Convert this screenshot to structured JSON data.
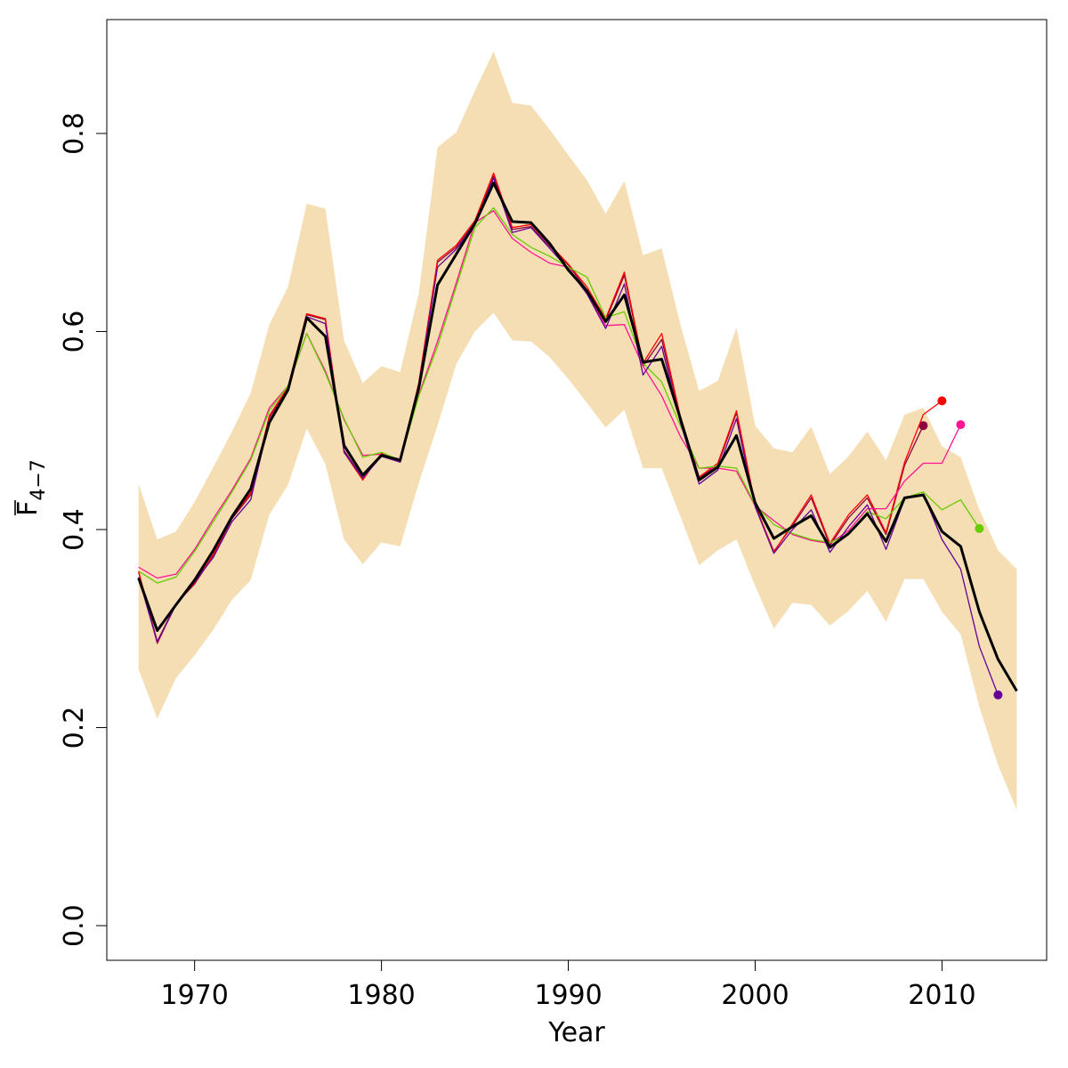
{
  "chart_data": {
    "type": "line",
    "xlabel": "Year",
    "ylabel_main": "F",
    "ylabel_sub": "4−7",
    "xlim": [
      1965.3,
      2015.6
    ],
    "ylim": [
      -0.035,
      0.915
    ],
    "xticks": [
      1970,
      1980,
      1990,
      2000,
      2010
    ],
    "yticks": [
      0.0,
      0.2,
      0.4,
      0.6,
      0.8
    ],
    "ytick_labels": [
      "0.0",
      "0.2",
      "0.4",
      "0.6",
      "0.8"
    ],
    "grid": false,
    "band": {
      "color": "#F5DEB3",
      "x": [
        1967,
        1968,
        1969,
        1970,
        1971,
        1972,
        1973,
        1974,
        1975,
        1976,
        1977,
        1978,
        1979,
        1980,
        1981,
        1982,
        1983,
        1984,
        1985,
        1986,
        1987,
        1988,
        1989,
        1990,
        1991,
        1992,
        1993,
        1994,
        1995,
        1996,
        1997,
        1998,
        1999,
        2000,
        2001,
        2002,
        2003,
        2004,
        2005,
        2006,
        2007,
        2008,
        2009,
        2010,
        2011,
        2012,
        2013,
        2014
      ],
      "upper": [
        0.446,
        0.39,
        0.398,
        0.428,
        0.463,
        0.499,
        0.538,
        0.607,
        0.645,
        0.729,
        0.724,
        0.591,
        0.548,
        0.565,
        0.559,
        0.639,
        0.786,
        0.801,
        0.843,
        0.883,
        0.831,
        0.828,
        0.804,
        0.778,
        0.753,
        0.719,
        0.752,
        0.677,
        0.684,
        0.607,
        0.54,
        0.55,
        0.604,
        0.505,
        0.482,
        0.478,
        0.504,
        0.456,
        0.474,
        0.499,
        0.47,
        0.516,
        0.523,
        0.484,
        0.473,
        0.42,
        0.379,
        0.36
      ],
      "lower": [
        0.259,
        0.209,
        0.25,
        0.273,
        0.299,
        0.329,
        0.349,
        0.415,
        0.445,
        0.502,
        0.466,
        0.39,
        0.365,
        0.387,
        0.383,
        0.447,
        0.505,
        0.567,
        0.6,
        0.619,
        0.591,
        0.59,
        0.574,
        0.552,
        0.528,
        0.503,
        0.521,
        0.462,
        0.462,
        0.413,
        0.364,
        0.379,
        0.39,
        0.343,
        0.3,
        0.326,
        0.324,
        0.303,
        0.318,
        0.338,
        0.307,
        0.35,
        0.35,
        0.317,
        0.294,
        0.221,
        0.162,
        0.117
      ]
    },
    "series": [
      {
        "color": "#000000",
        "width": 3,
        "x": [
          1967,
          1968,
          1969,
          1970,
          1971,
          1972,
          1973,
          1974,
          1975,
          1976,
          1977,
          1978,
          1979,
          1980,
          1981,
          1982,
          1983,
          1984,
          1985,
          1986,
          1987,
          1988,
          1989,
          1990,
          1991,
          1992,
          1993,
          1994,
          1995,
          1996,
          1997,
          1998,
          1999,
          2000,
          2001,
          2002,
          2003,
          2004,
          2005,
          2006,
          2007,
          2008,
          2009,
          2010,
          2011,
          2012,
          2013,
          2014
        ],
        "y": [
          0.351,
          0.298,
          0.324,
          0.349,
          0.379,
          0.413,
          0.441,
          0.508,
          0.541,
          0.614,
          0.595,
          0.485,
          0.455,
          0.475,
          0.47,
          0.543,
          0.647,
          0.678,
          0.709,
          0.75,
          0.711,
          0.71,
          0.689,
          0.662,
          0.641,
          0.61,
          0.637,
          0.569,
          0.572,
          0.512,
          0.45,
          0.463,
          0.495,
          0.427,
          0.391,
          0.403,
          0.414,
          0.382,
          0.396,
          0.416,
          0.388,
          0.432,
          0.435,
          0.398,
          0.383,
          0.317,
          0.269,
          0.237
        ],
        "end_marker": false
      },
      {
        "color": "#8B0040",
        "width": 1.3,
        "x": [
          1967,
          1968,
          1969,
          1970,
          1971,
          1972,
          1973,
          1974,
          1975,
          1976,
          1977,
          1978,
          1979,
          1980,
          1981,
          1982,
          1983,
          1984,
          1985,
          1986,
          1987,
          1988,
          1989,
          1990,
          1991,
          1992,
          1993,
          1994,
          1995,
          1996,
          1997,
          1998,
          1999,
          2000,
          2001,
          2002,
          2003,
          2004,
          2005,
          2006,
          2007,
          2008,
          2009
        ],
        "y": [
          0.357,
          0.287,
          0.325,
          0.345,
          0.374,
          0.411,
          0.435,
          0.513,
          0.543,
          0.617,
          0.612,
          0.48,
          0.452,
          0.476,
          0.47,
          0.548,
          0.67,
          0.685,
          0.71,
          0.757,
          0.703,
          0.706,
          0.686,
          0.667,
          0.642,
          0.611,
          0.657,
          0.565,
          0.592,
          0.512,
          0.452,
          0.465,
          0.518,
          0.424,
          0.378,
          0.404,
          0.432,
          0.384,
          0.412,
          0.432,
          0.395,
          0.465,
          0.505
        ],
        "end_marker": true
      },
      {
        "color": "#FF0000",
        "width": 1.3,
        "x": [
          1967,
          1968,
          1969,
          1970,
          1971,
          1972,
          1973,
          1974,
          1975,
          1976,
          1977,
          1978,
          1979,
          1980,
          1981,
          1982,
          1983,
          1984,
          1985,
          1986,
          1987,
          1988,
          1989,
          1990,
          1991,
          1992,
          1993,
          1994,
          1995,
          1996,
          1997,
          1998,
          1999,
          2000,
          2001,
          2002,
          2003,
          2004,
          2005,
          2006,
          2007,
          2008,
          2009,
          2010
        ],
        "y": [
          0.358,
          0.285,
          0.325,
          0.346,
          0.375,
          0.412,
          0.437,
          0.515,
          0.544,
          0.618,
          0.613,
          0.478,
          0.45,
          0.477,
          0.468,
          0.548,
          0.672,
          0.687,
          0.712,
          0.76,
          0.705,
          0.708,
          0.688,
          0.668,
          0.645,
          0.613,
          0.66,
          0.568,
          0.598,
          0.514,
          0.453,
          0.467,
          0.52,
          0.425,
          0.377,
          0.406,
          0.435,
          0.386,
          0.415,
          0.435,
          0.397,
          0.468,
          0.516,
          0.53
        ],
        "end_marker": true
      },
      {
        "color": "#FF1493",
        "width": 1.3,
        "x": [
          1967,
          1968,
          1969,
          1970,
          1971,
          1972,
          1973,
          1974,
          1975,
          1976,
          1977,
          1978,
          1979,
          1980,
          1981,
          1982,
          1983,
          1984,
          1985,
          1986,
          1987,
          1988,
          1989,
          1990,
          1991,
          1992,
          1993,
          1994,
          1995,
          1996,
          1997,
          1998,
          1999,
          2000,
          2001,
          2002,
          2003,
          2004,
          2005,
          2006,
          2007,
          2008,
          2009,
          2010,
          2011
        ],
        "y": [
          0.362,
          0.351,
          0.355,
          0.38,
          0.411,
          0.44,
          0.472,
          0.523,
          0.545,
          0.598,
          0.56,
          0.511,
          0.475,
          0.476,
          0.471,
          0.536,
          0.59,
          0.649,
          0.71,
          0.722,
          0.694,
          0.68,
          0.669,
          0.665,
          0.638,
          0.606,
          0.607,
          0.565,
          0.535,
          0.494,
          0.462,
          0.462,
          0.459,
          0.424,
          0.409,
          0.395,
          0.389,
          0.386,
          0.399,
          0.421,
          0.421,
          0.449,
          0.467,
          0.467,
          0.506
        ],
        "end_marker": true
      },
      {
        "color": "#66CC00",
        "width": 1.3,
        "x": [
          1967,
          1968,
          1969,
          1970,
          1971,
          1972,
          1973,
          1974,
          1975,
          1976,
          1977,
          1978,
          1979,
          1980,
          1981,
          1982,
          1983,
          1984,
          1985,
          1986,
          1987,
          1988,
          1989,
          1990,
          1991,
          1992,
          1993,
          1994,
          1995,
          1996,
          1997,
          1998,
          1999,
          2000,
          2001,
          2002,
          2003,
          2004,
          2005,
          2006,
          2007,
          2008,
          2009,
          2010,
          2011,
          2012
        ],
        "y": [
          0.358,
          0.346,
          0.352,
          0.378,
          0.408,
          0.438,
          0.47,
          0.52,
          0.545,
          0.598,
          0.558,
          0.512,
          0.473,
          0.478,
          0.47,
          0.535,
          0.585,
          0.645,
          0.705,
          0.725,
          0.698,
          0.685,
          0.676,
          0.665,
          0.655,
          0.614,
          0.62,
          0.568,
          0.549,
          0.505,
          0.462,
          0.464,
          0.462,
          0.425,
          0.405,
          0.396,
          0.39,
          0.387,
          0.395,
          0.418,
          0.411,
          0.432,
          0.438,
          0.42,
          0.43,
          0.401
        ],
        "end_marker": true
      },
      {
        "color": "#660099",
        "width": 1.3,
        "x": [
          1967,
          1968,
          1969,
          1970,
          1971,
          1972,
          1973,
          1974,
          1975,
          1976,
          1977,
          1978,
          1979,
          1980,
          1981,
          1982,
          1983,
          1984,
          1985,
          1986,
          1987,
          1988,
          1989,
          1990,
          1991,
          1992,
          1993,
          1994,
          1995,
          1996,
          1997,
          1998,
          1999,
          2000,
          2001,
          2002,
          2003,
          2004,
          2005,
          2006,
          2007,
          2008,
          2009,
          2010,
          2011,
          2012,
          2013
        ],
        "y": [
          0.352,
          0.286,
          0.324,
          0.347,
          0.372,
          0.408,
          0.43,
          0.51,
          0.541,
          0.615,
          0.608,
          0.478,
          0.452,
          0.474,
          0.468,
          0.546,
          0.665,
          0.683,
          0.708,
          0.755,
          0.7,
          0.705,
          0.684,
          0.663,
          0.638,
          0.603,
          0.648,
          0.556,
          0.585,
          0.508,
          0.446,
          0.46,
          0.512,
          0.423,
          0.376,
          0.4,
          0.42,
          0.377,
          0.403,
          0.425,
          0.38,
          0.431,
          0.436,
          0.39,
          0.36,
          0.282,
          0.233
        ],
        "end_marker": true
      }
    ]
  }
}
